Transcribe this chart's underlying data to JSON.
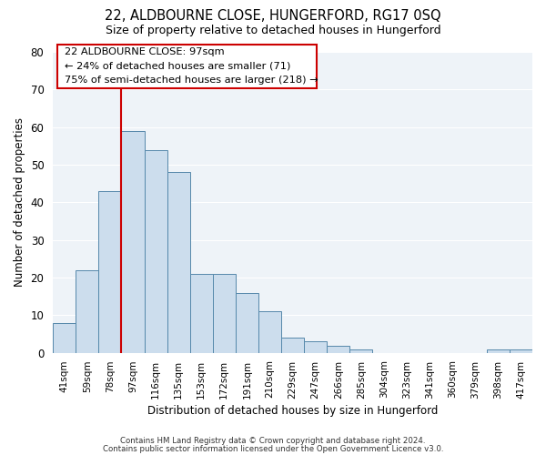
{
  "title": "22, ALDBOURNE CLOSE, HUNGERFORD, RG17 0SQ",
  "subtitle": "Size of property relative to detached houses in Hungerford",
  "xlabel": "Distribution of detached houses by size in Hungerford",
  "ylabel": "Number of detached properties",
  "bar_labels": [
    "41sqm",
    "59sqm",
    "78sqm",
    "97sqm",
    "116sqm",
    "135sqm",
    "153sqm",
    "172sqm",
    "191sqm",
    "210sqm",
    "229sqm",
    "247sqm",
    "266sqm",
    "285sqm",
    "304sqm",
    "323sqm",
    "341sqm",
    "360sqm",
    "379sqm",
    "398sqm",
    "417sqm"
  ],
  "bar_values": [
    8,
    22,
    43,
    59,
    54,
    48,
    21,
    21,
    16,
    11,
    4,
    3,
    2,
    1,
    0,
    0,
    0,
    0,
    0,
    1,
    1
  ],
  "bar_color": "#ccdded",
  "bar_edge_color": "#5588aa",
  "vline_x_index": 3,
  "vline_color": "#cc0000",
  "ylim": [
    0,
    80
  ],
  "yticks": [
    0,
    10,
    20,
    30,
    40,
    50,
    60,
    70,
    80
  ],
  "annotation_lines": [
    "22 ALDBOURNE CLOSE: 97sqm",
    "← 24% of detached houses are smaller (71)",
    "75% of semi-detached houses are larger (218) →"
  ],
  "footer_line1": "Contains HM Land Registry data © Crown copyright and database right 2024.",
  "footer_line2": "Contains public sector information licensed under the Open Government Licence v3.0.",
  "background_color": "#ffffff",
  "plot_bg_color": "#eef3f8",
  "grid_color": "#ffffff"
}
